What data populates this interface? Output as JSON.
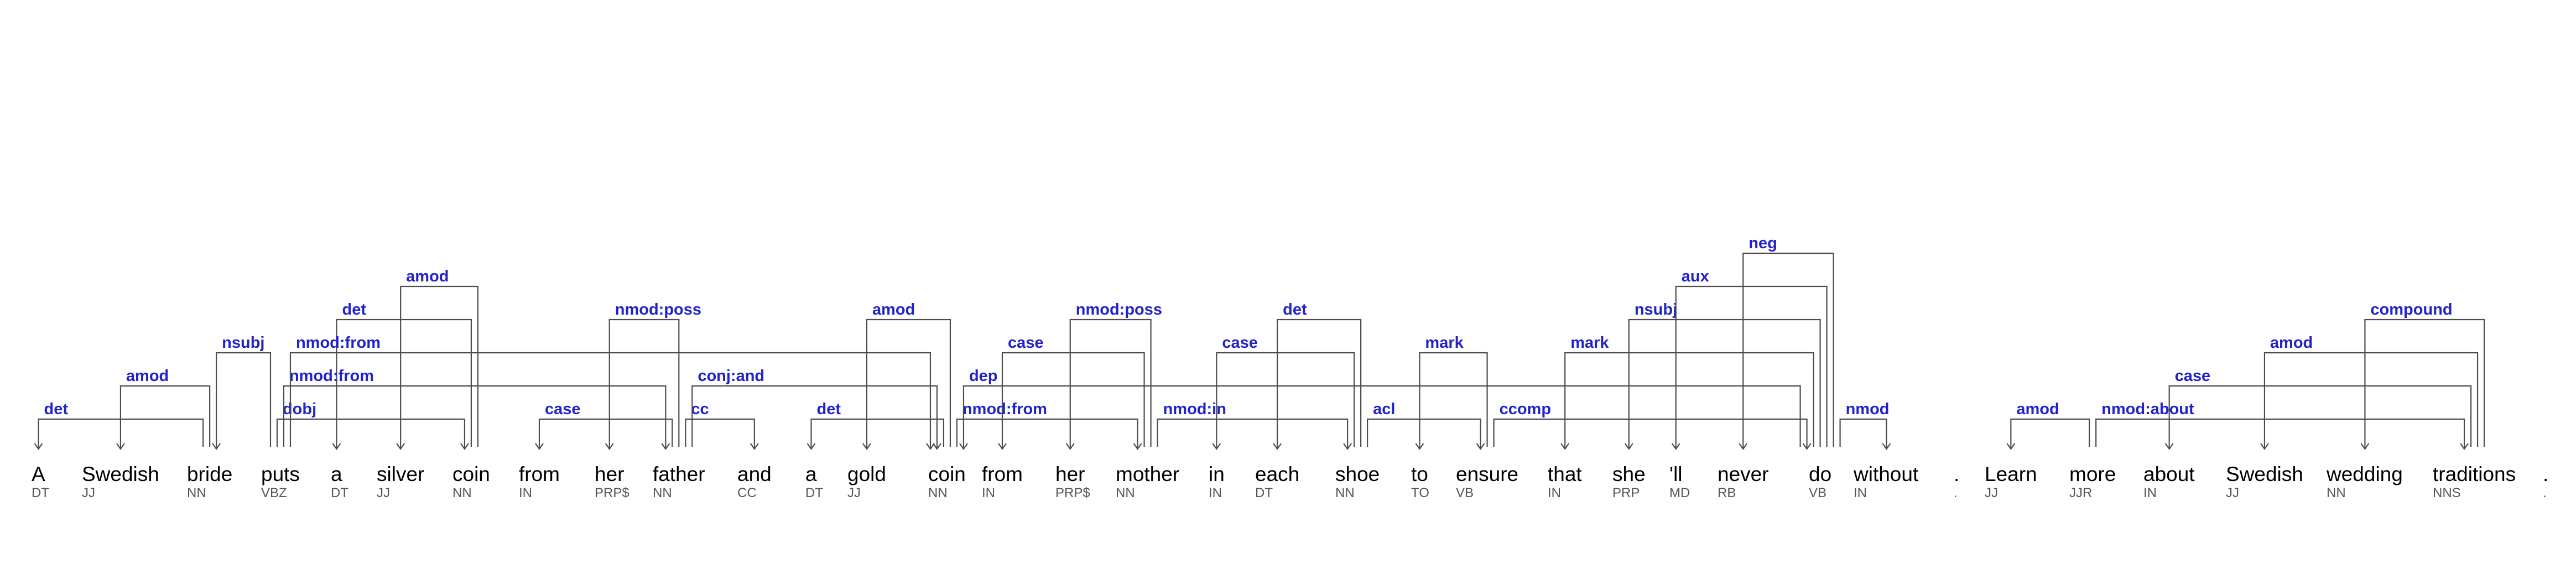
{
  "diagram": {
    "type": "dependency-parse",
    "colors": {
      "label": "#2222cc",
      "word": "#000000",
      "tag": "#555555",
      "line": "#4d4d4d"
    },
    "tokens": [
      {
        "word": "A",
        "tag": "DT"
      },
      {
        "word": "Swedish",
        "tag": "JJ"
      },
      {
        "word": "bride",
        "tag": "NN"
      },
      {
        "word": "puts",
        "tag": "VBZ"
      },
      {
        "word": "a",
        "tag": "DT"
      },
      {
        "word": "silver",
        "tag": "JJ"
      },
      {
        "word": "coin",
        "tag": "NN"
      },
      {
        "word": "from",
        "tag": "IN"
      },
      {
        "word": "her",
        "tag": "PRP$"
      },
      {
        "word": "father",
        "tag": "NN"
      },
      {
        "word": "and",
        "tag": "CC"
      },
      {
        "word": "a",
        "tag": "DT"
      },
      {
        "word": "gold",
        "tag": "JJ"
      },
      {
        "word": "coin",
        "tag": "NN"
      },
      {
        "word": "from",
        "tag": "IN"
      },
      {
        "word": "her",
        "tag": "PRP$"
      },
      {
        "word": "mother",
        "tag": "NN"
      },
      {
        "word": "in",
        "tag": "IN"
      },
      {
        "word": "each",
        "tag": "DT"
      },
      {
        "word": "shoe",
        "tag": "NN"
      },
      {
        "word": "to",
        "tag": "TO"
      },
      {
        "word": "ensure",
        "tag": "VB"
      },
      {
        "word": "that",
        "tag": "IN"
      },
      {
        "word": "she",
        "tag": "PRP"
      },
      {
        "word": "'ll",
        "tag": "MD"
      },
      {
        "word": "never",
        "tag": "RB"
      },
      {
        "word": "do",
        "tag": "VB"
      },
      {
        "word": "without",
        "tag": "IN"
      },
      {
        "word": ".",
        "tag": "."
      },
      {
        "word": "Learn",
        "tag": "JJ"
      },
      {
        "word": "more",
        "tag": "JJR"
      },
      {
        "word": "about",
        "tag": "IN"
      },
      {
        "word": "Swedish",
        "tag": "JJ"
      },
      {
        "word": "wedding",
        "tag": "NN"
      },
      {
        "word": "traditions",
        "tag": "NNS"
      },
      {
        "word": ".",
        "tag": "."
      }
    ],
    "arcs": [
      {
        "label": "det",
        "head": 2,
        "dep": 0,
        "level": 1
      },
      {
        "label": "amod",
        "head": 2,
        "dep": 1,
        "level": 2
      },
      {
        "label": "nsubj",
        "head": 3,
        "dep": 2,
        "level": 3
      },
      {
        "label": "dobj",
        "head": 3,
        "dep": 6,
        "level": 1
      },
      {
        "label": "det",
        "head": 6,
        "dep": 4,
        "level": 4
      },
      {
        "label": "amod",
        "head": 6,
        "dep": 5,
        "level": 5
      },
      {
        "label": "nmod:from",
        "head": 3,
        "dep": 9,
        "level": 2
      },
      {
        "label": "case",
        "head": 9,
        "dep": 7,
        "level": 1
      },
      {
        "label": "nmod:poss",
        "head": 9,
        "dep": 8,
        "level": 4
      },
      {
        "label": "cc",
        "head": 9,
        "dep": 10,
        "level": 1
      },
      {
        "label": "conj:and",
        "head": 9,
        "dep": 13,
        "level": 2
      },
      {
        "label": "nmod:from",
        "head": 3,
        "dep": 13,
        "level": 3
      },
      {
        "label": "det",
        "head": 13,
        "dep": 11,
        "level": 1
      },
      {
        "label": "amod",
        "head": 13,
        "dep": 12,
        "level": 4
      },
      {
        "label": "nmod:from",
        "head": 13,
        "dep": 16,
        "level": 1
      },
      {
        "label": "case",
        "head": 16,
        "dep": 14,
        "level": 3
      },
      {
        "label": "nmod:poss",
        "head": 16,
        "dep": 15,
        "level": 4
      },
      {
        "label": "nmod:in",
        "head": 16,
        "dep": 19,
        "level": 1
      },
      {
        "label": "case",
        "head": 19,
        "dep": 17,
        "level": 3
      },
      {
        "label": "det",
        "head": 19,
        "dep": 18,
        "level": 4
      },
      {
        "label": "dep",
        "head": 26,
        "dep": 13,
        "level": 2
      },
      {
        "label": "acl",
        "head": 19,
        "dep": 21,
        "level": 1
      },
      {
        "label": "mark",
        "head": 21,
        "dep": 20,
        "level": 3
      },
      {
        "label": "ccomp",
        "head": 21,
        "dep": 26,
        "level": 1
      },
      {
        "label": "mark",
        "head": 26,
        "dep": 22,
        "level": 3
      },
      {
        "label": "nsubj",
        "head": 26,
        "dep": 23,
        "level": 4
      },
      {
        "label": "aux",
        "head": 26,
        "dep": 24,
        "level": 5
      },
      {
        "label": "neg",
        "head": 26,
        "dep": 25,
        "level": 6
      },
      {
        "label": "nmod",
        "head": 26,
        "dep": 27,
        "level": 1
      },
      {
        "label": "amod",
        "head": 30,
        "dep": 29,
        "level": 1
      },
      {
        "label": "nmod:about",
        "head": 30,
        "dep": 34,
        "level": 1
      },
      {
        "label": "case",
        "head": 34,
        "dep": 31,
        "level": 2
      },
      {
        "label": "amod",
        "head": 34,
        "dep": 32,
        "level": 3
      },
      {
        "label": "compound",
        "head": 34,
        "dep": 33,
        "level": 4
      }
    ]
  }
}
